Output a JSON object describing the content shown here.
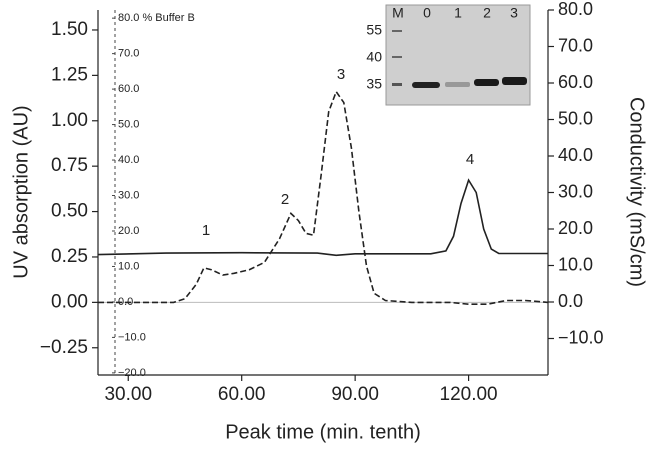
{
  "chart_data": {
    "type": "line",
    "xlabel": "Peak time (min. tenth)",
    "ylabel": "UV absorption (AU)",
    "y2label": "Conductivity (mS/cm)",
    "xlim": [
      22,
      141
    ],
    "ylim": [
      -0.4,
      1.61
    ],
    "y2lim": [
      -20,
      80
    ],
    "xticks": [
      {
        "value": 30,
        "label": "30.00"
      },
      {
        "value": 60,
        "label": "60.00"
      },
      {
        "value": 90,
        "label": "90.00"
      },
      {
        "value": 120,
        "label": "120.00"
      }
    ],
    "yticks": [
      {
        "value": -0.25,
        "label": "−0.25"
      },
      {
        "value": 0,
        "label": "0.00"
      },
      {
        "value": 0.25,
        "label": "0.25"
      },
      {
        "value": 0.5,
        "label": "0.50"
      },
      {
        "value": 0.75,
        "label": "0.75"
      },
      {
        "value": 1,
        "label": "1.00"
      },
      {
        "value": 1.25,
        "label": "1.25"
      },
      {
        "value": 1.5,
        "label": "1.50"
      }
    ],
    "y2ticks": [
      {
        "value": -10,
        "label": "−10.0"
      },
      {
        "value": 0,
        "label": "0.0"
      },
      {
        "value": 10,
        "label": "10.0"
      },
      {
        "value": 20,
        "label": "20.0"
      },
      {
        "value": 30,
        "label": "30.0"
      },
      {
        "value": 40,
        "label": "40.0"
      },
      {
        "value": 50,
        "label": "50.0"
      },
      {
        "value": 60,
        "label": "60.0"
      },
      {
        "value": 70,
        "label": "70.0"
      },
      {
        "value": 80,
        "label": "80.0"
      }
    ],
    "buffer_axis": {
      "lim": [
        -20.6,
        82.3
      ],
      "ticks": [
        {
          "value": -20,
          "label": "−20.0"
        },
        {
          "value": -10,
          "label": "−10.0"
        },
        {
          "value": 0,
          "label": "0.0"
        },
        {
          "value": 10,
          "label": "10.0"
        },
        {
          "value": 20,
          "label": "20.0"
        },
        {
          "value": 30,
          "label": "30.0"
        },
        {
          "value": 40,
          "label": "40.0"
        },
        {
          "value": 50,
          "label": "50.0"
        },
        {
          "value": 60,
          "label": "60.0"
        },
        {
          "value": 70,
          "label": "70.0"
        },
        {
          "value": 80,
          "label": "80.0 % Buffer B"
        }
      ]
    },
    "series": [
      {
        "color": "#222222",
        "dash": true,
        "x": [
          22,
          42,
          45,
          48,
          50,
          52,
          55,
          58,
          62,
          66,
          70,
          73,
          75,
          77,
          79,
          81,
          83,
          85,
          87,
          89,
          91,
          93,
          95,
          98,
          105,
          115,
          120,
          125,
          130,
          135,
          141
        ],
        "values": [
          0,
          0,
          0.02,
          0.1,
          0.19,
          0.18,
          0.15,
          0.16,
          0.18,
          0.22,
          0.35,
          0.49,
          0.45,
          0.38,
          0.37,
          0.7,
          1.05,
          1.16,
          1.1,
          0.85,
          0.5,
          0.2,
          0.05,
          0.01,
          0,
          0,
          -0.01,
          -0.01,
          0.01,
          0.01,
          0
        ]
      },
      {
        "color": "#222222",
        "dash": false,
        "axis": "y2",
        "x": [
          22,
          40,
          60,
          80,
          85,
          90,
          100,
          110,
          114,
          116,
          118,
          120,
          122,
          124,
          126,
          128,
          141
        ],
        "values": [
          13.0,
          13.4,
          13.5,
          13.4,
          12.8,
          13.2,
          13.2,
          13.2,
          14,
          18,
          27,
          33.4,
          30,
          20,
          14.5,
          13.3,
          13.3
        ]
      }
    ],
    "annotations": [
      "1",
      "2",
      "3",
      "4"
    ],
    "inset": {
      "lane_labels": [
        "M",
        "0",
        "1",
        "2",
        "3"
      ],
      "marker_labels": [
        "55",
        "40",
        "35"
      ]
    }
  }
}
